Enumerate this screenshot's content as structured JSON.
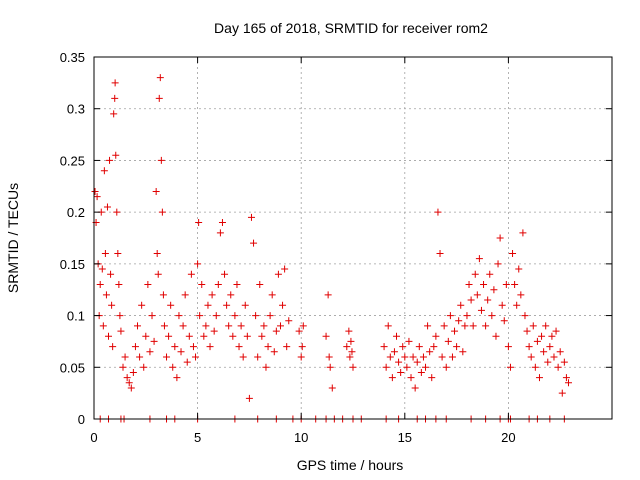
{
  "chart_data": {
    "type": "scatter",
    "title": "Day 165 of 2018, SRMTID for receiver rom2",
    "xlabel": "GPS time / hours",
    "ylabel": "SRMTID / TECUs",
    "xlim": [
      0,
      25
    ],
    "ylim": [
      0,
      0.35
    ],
    "x_ticks": [
      0,
      5,
      10,
      15,
      20
    ],
    "x_tick_labels": [
      "0",
      "5",
      "10",
      "15",
      "20"
    ],
    "y_ticks": [
      0,
      0.05,
      0.1,
      0.15,
      0.2,
      0.25,
      0.3,
      0.35
    ],
    "y_tick_labels": [
      "0",
      "0.05",
      "0.1",
      "0.15",
      "0.2",
      "0.25",
      "0.3",
      "0.35"
    ],
    "grid": true,
    "marker": "+",
    "series": [
      {
        "name": "SRMTID",
        "color": "#e00000",
        "points": [
          [
            0.05,
            0.22
          ],
          [
            0.1,
            0.19
          ],
          [
            0.15,
            0.215
          ],
          [
            0.2,
            0.15
          ],
          [
            0.25,
            0.1
          ],
          [
            0.3,
            0.13
          ],
          [
            0.35,
            0.2
          ],
          [
            0.4,
            0.145
          ],
          [
            0.45,
            0.09
          ],
          [
            0.5,
            0.24
          ],
          [
            0.55,
            0.16
          ],
          [
            0.6,
            0.12
          ],
          [
            0.65,
            0.205
          ],
          [
            0.7,
            0.08
          ],
          [
            0.75,
            0.25
          ],
          [
            0.8,
            0.14
          ],
          [
            0.85,
            0.11
          ],
          [
            0.9,
            0.07
          ],
          [
            0.95,
            0.295
          ],
          [
            1.0,
            0.31
          ],
          [
            1.02,
            0.325
          ],
          [
            1.05,
            0.255
          ],
          [
            1.1,
            0.2
          ],
          [
            1.15,
            0.16
          ],
          [
            1.2,
            0.13
          ],
          [
            1.25,
            0.1
          ],
          [
            1.3,
            0.085
          ],
          [
            1.4,
            0.05
          ],
          [
            1.5,
            0.06
          ],
          [
            1.6,
            0.04
          ],
          [
            1.7,
            0.035
          ],
          [
            1.8,
            0.03
          ],
          [
            1.9,
            0.045
          ],
          [
            2.0,
            0.07
          ],
          [
            2.1,
            0.09
          ],
          [
            2.2,
            0.06
          ],
          [
            2.3,
            0.11
          ],
          [
            2.4,
            0.05
          ],
          [
            2.5,
            0.08
          ],
          [
            2.6,
            0.13
          ],
          [
            2.7,
            0.065
          ],
          [
            2.8,
            0.1
          ],
          [
            2.9,
            0.075
          ],
          [
            3.0,
            0.22
          ],
          [
            3.05,
            0.16
          ],
          [
            3.1,
            0.14
          ],
          [
            3.15,
            0.31
          ],
          [
            3.2,
            0.33
          ],
          [
            3.25,
            0.25
          ],
          [
            3.3,
            0.2
          ],
          [
            3.35,
            0.12
          ],
          [
            3.4,
            0.09
          ],
          [
            3.5,
            0.06
          ],
          [
            3.6,
            0.08
          ],
          [
            3.7,
            0.11
          ],
          [
            3.8,
            0.05
          ],
          [
            3.9,
            0.07
          ],
          [
            4.0,
            0.04
          ],
          [
            4.1,
            0.1
          ],
          [
            4.2,
            0.065
          ],
          [
            4.3,
            0.09
          ],
          [
            4.4,
            0.12
          ],
          [
            4.5,
            0.055
          ],
          [
            4.6,
            0.08
          ],
          [
            4.7,
            0.14
          ],
          [
            4.8,
            0.07
          ],
          [
            4.9,
            0.06
          ],
          [
            5.0,
            0.15
          ],
          [
            5.05,
            0.19
          ],
          [
            5.1,
            0.1
          ],
          [
            5.2,
            0.13
          ],
          [
            5.3,
            0.08
          ],
          [
            5.4,
            0.09
          ],
          [
            5.5,
            0.11
          ],
          [
            5.6,
            0.07
          ],
          [
            5.7,
            0.12
          ],
          [
            5.8,
            0.085
          ],
          [
            5.9,
            0.1
          ],
          [
            6.0,
            0.13
          ],
          [
            6.1,
            0.18
          ],
          [
            6.2,
            0.19
          ],
          [
            6.3,
            0.14
          ],
          [
            6.4,
            0.11
          ],
          [
            6.5,
            0.09
          ],
          [
            6.6,
            0.12
          ],
          [
            6.7,
            0.08
          ],
          [
            6.8,
            0.1
          ],
          [
            6.9,
            0.13
          ],
          [
            7.0,
            0.07
          ],
          [
            7.1,
            0.09
          ],
          [
            7.2,
            0.06
          ],
          [
            7.3,
            0.11
          ],
          [
            7.4,
            0.08
          ],
          [
            7.5,
            0.02
          ],
          [
            7.6,
            0.195
          ],
          [
            7.7,
            0.17
          ],
          [
            7.8,
            0.1
          ],
          [
            7.9,
            0.06
          ],
          [
            8.0,
            0.13
          ],
          [
            8.1,
            0.08
          ],
          [
            8.2,
            0.09
          ],
          [
            8.3,
            0.05
          ],
          [
            8.4,
            0.07
          ],
          [
            8.5,
            0.1
          ],
          [
            8.6,
            0.12
          ],
          [
            8.7,
            0.065
          ],
          [
            8.8,
            0.085
          ],
          [
            8.9,
            0.14
          ],
          [
            9.0,
            0.09
          ],
          [
            9.1,
            0.11
          ],
          [
            9.2,
            0.145
          ],
          [
            9.3,
            0.07
          ],
          [
            9.4,
            0.095
          ],
          [
            9.9,
            0.085
          ],
          [
            10.0,
            0.06
          ],
          [
            10.05,
            0.07
          ],
          [
            10.1,
            0.09
          ],
          [
            11.2,
            0.08
          ],
          [
            11.3,
            0.12
          ],
          [
            11.35,
            0.06
          ],
          [
            11.4,
            0.05
          ],
          [
            11.5,
            0.03
          ],
          [
            12.2,
            0.07
          ],
          [
            12.3,
            0.085
          ],
          [
            12.35,
            0.06
          ],
          [
            12.4,
            0.075
          ],
          [
            12.45,
            0.065
          ],
          [
            12.5,
            0.05
          ],
          [
            14.0,
            0.07
          ],
          [
            14.1,
            0.05
          ],
          [
            14.2,
            0.09
          ],
          [
            14.3,
            0.06
          ],
          [
            14.4,
            0.04
          ],
          [
            14.5,
            0.065
          ],
          [
            14.6,
            0.08
          ],
          [
            14.7,
            0.055
          ],
          [
            14.8,
            0.045
          ],
          [
            14.9,
            0.07
          ],
          [
            15.0,
            0.06
          ],
          [
            15.1,
            0.05
          ],
          [
            15.2,
            0.075
          ],
          [
            15.3,
            0.04
          ],
          [
            15.4,
            0.06
          ],
          [
            15.5,
            0.03
          ],
          [
            15.6,
            0.055
          ],
          [
            15.7,
            0.07
          ],
          [
            15.8,
            0.045
          ],
          [
            15.9,
            0.06
          ],
          [
            16.0,
            0.05
          ],
          [
            16.1,
            0.09
          ],
          [
            16.2,
            0.065
          ],
          [
            16.3,
            0.04
          ],
          [
            16.4,
            0.07
          ],
          [
            16.5,
            0.08
          ],
          [
            16.6,
            0.2
          ],
          [
            16.7,
            0.16
          ],
          [
            16.8,
            0.06
          ],
          [
            16.9,
            0.09
          ],
          [
            17.0,
            0.05
          ],
          [
            17.1,
            0.075
          ],
          [
            17.2,
            0.1
          ],
          [
            17.3,
            0.06
          ],
          [
            17.4,
            0.085
          ],
          [
            17.5,
            0.07
          ],
          [
            17.6,
            0.095
          ],
          [
            17.7,
            0.11
          ],
          [
            17.8,
            0.065
          ],
          [
            17.9,
            0.09
          ],
          [
            18.0,
            0.1
          ],
          [
            18.1,
            0.13
          ],
          [
            18.2,
            0.115
          ],
          [
            18.3,
            0.09
          ],
          [
            18.4,
            0.14
          ],
          [
            18.5,
            0.12
          ],
          [
            18.6,
            0.155
          ],
          [
            18.7,
            0.105
          ],
          [
            18.8,
            0.13
          ],
          [
            18.9,
            0.09
          ],
          [
            19.0,
            0.115
          ],
          [
            19.1,
            0.14
          ],
          [
            19.2,
            0.1
          ],
          [
            19.3,
            0.125
          ],
          [
            19.4,
            0.08
          ],
          [
            19.5,
            0.15
          ],
          [
            19.6,
            0.175
          ],
          [
            19.7,
            0.11
          ],
          [
            19.8,
            0.095
          ],
          [
            19.9,
            0.13
          ],
          [
            20.0,
            0.07
          ],
          [
            20.1,
            0.05
          ],
          [
            20.2,
            0.16
          ],
          [
            20.3,
            0.13
          ],
          [
            20.4,
            0.11
          ],
          [
            20.5,
            0.145
          ],
          [
            20.6,
            0.12
          ],
          [
            20.7,
            0.18
          ],
          [
            20.8,
            0.1
          ],
          [
            20.9,
            0.085
          ],
          [
            21.0,
            0.07
          ],
          [
            21.1,
            0.06
          ],
          [
            21.2,
            0.09
          ],
          [
            21.3,
            0.05
          ],
          [
            21.4,
            0.075
          ],
          [
            21.5,
            0.04
          ],
          [
            21.6,
            0.08
          ],
          [
            21.7,
            0.065
          ],
          [
            21.8,
            0.09
          ],
          [
            21.9,
            0.055
          ],
          [
            22.0,
            0.07
          ],
          [
            22.1,
            0.08
          ],
          [
            22.2,
            0.06
          ],
          [
            22.3,
            0.085
          ],
          [
            22.4,
            0.05
          ],
          [
            22.5,
            0.065
          ],
          [
            22.6,
            0.025
          ],
          [
            22.7,
            0.055
          ],
          [
            22.8,
            0.04
          ],
          [
            22.9,
            0.035
          ],
          [
            0.3,
            0.0
          ],
          [
            0.7,
            0.0
          ],
          [
            1.3,
            0.0
          ],
          [
            1.45,
            0.0
          ],
          [
            2.7,
            0.0
          ],
          [
            3.5,
            0.0
          ],
          [
            3.9,
            0.0
          ],
          [
            5.0,
            0.0
          ],
          [
            6.8,
            0.0
          ],
          [
            7.9,
            0.0
          ],
          [
            8.8,
            0.0
          ],
          [
            9.6,
            0.0
          ],
          [
            10.0,
            0.0
          ],
          [
            10.7,
            0.0
          ],
          [
            11.2,
            0.0
          ],
          [
            11.6,
            0.0
          ],
          [
            12.0,
            0.0
          ],
          [
            12.5,
            0.0
          ],
          [
            12.9,
            0.0
          ],
          [
            14.1,
            0.0
          ],
          [
            14.7,
            0.0
          ],
          [
            15.6,
            0.0
          ],
          [
            16.0,
            0.0
          ],
          [
            16.5,
            0.0
          ],
          [
            17.0,
            0.0
          ],
          [
            18.2,
            0.0
          ],
          [
            18.9,
            0.0
          ],
          [
            19.6,
            0.0
          ],
          [
            20.0,
            0.0
          ],
          [
            20.1,
            0.0
          ],
          [
            21.0,
            0.0
          ],
          [
            21.4,
            0.0
          ],
          [
            22.0,
            0.0
          ],
          [
            22.7,
            0.0
          ]
        ]
      }
    ]
  }
}
